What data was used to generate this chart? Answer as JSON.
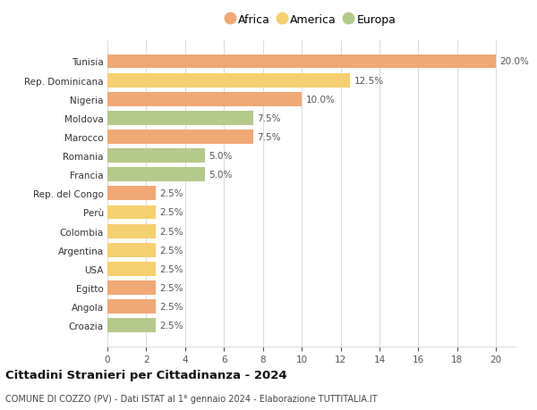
{
  "title": "Cittadini Stranieri per Cittadinanza - 2024",
  "subtitle": "COMUNE DI COZZO (PV) - Dati ISTAT al 1° gennaio 2024 - Elaborazione TUTTITALIA.IT",
  "categories": [
    "Tunisia",
    "Rep. Dominicana",
    "Nigeria",
    "Moldova",
    "Marocco",
    "Romania",
    "Francia",
    "Rep. del Congo",
    "Perù",
    "Colombia",
    "Argentina",
    "USA",
    "Egitto",
    "Angola",
    "Croazia"
  ],
  "values": [
    20.0,
    12.5,
    10.0,
    7.5,
    7.5,
    5.0,
    5.0,
    2.5,
    2.5,
    2.5,
    2.5,
    2.5,
    2.5,
    2.5,
    2.5
  ],
  "continents": [
    "Africa",
    "America",
    "Africa",
    "Europa",
    "Africa",
    "Europa",
    "Europa",
    "Africa",
    "America",
    "America",
    "America",
    "America",
    "Africa",
    "Africa",
    "Europa"
  ],
  "colors": {
    "Africa": "#f0a875",
    "America": "#f5d070",
    "Europa": "#b5c98a"
  },
  "legend_labels": [
    "Africa",
    "America",
    "Europa"
  ],
  "xlim": [
    0,
    21
  ],
  "xticks": [
    0,
    2,
    4,
    6,
    8,
    10,
    12,
    14,
    16,
    18,
    20
  ],
  "background_color": "#ffffff",
  "grid_color": "#dddddd",
  "bar_height": 0.75
}
